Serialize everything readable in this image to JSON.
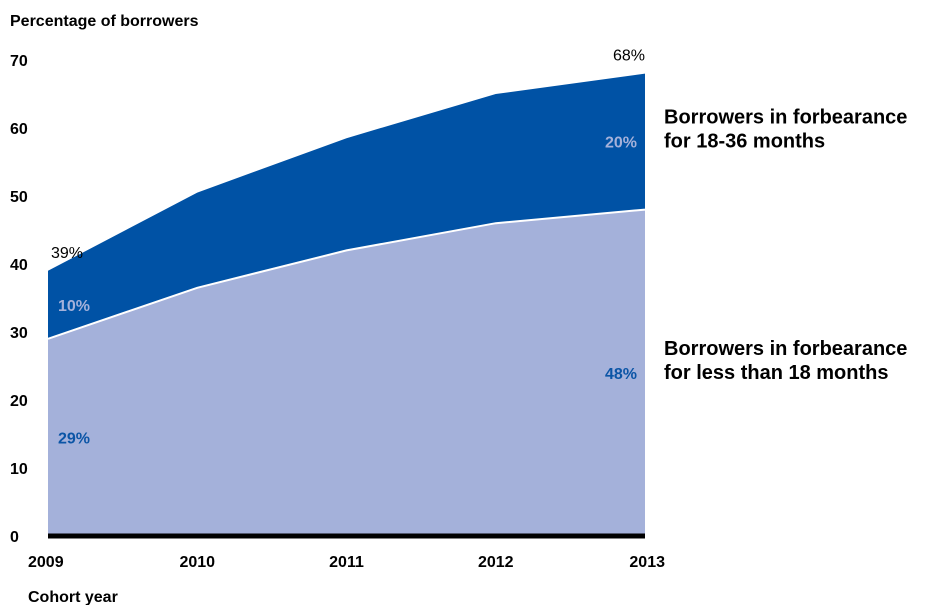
{
  "chart_data": {
    "type": "area",
    "stacked": true,
    "ylabel": "Percentage of borrowers",
    "xlabel": "Cohort year",
    "ylim": [
      0,
      70
    ],
    "yticks": [
      0,
      10,
      20,
      30,
      40,
      50,
      60,
      70
    ],
    "x": [
      "2009",
      "2010",
      "2011",
      "2012",
      "2013"
    ],
    "grid": false,
    "series": [
      {
        "name": "Borrowers in forbearance for less than 18 months",
        "name_lines": [
          "Borrowers in forbearance",
          "for less than 18 months"
        ],
        "color": "#a4b1da",
        "values": [
          29,
          36.5,
          42,
          46,
          48
        ],
        "labels": {
          "0": "29%",
          "4": "48%"
        },
        "label_color": "#0b55a6"
      },
      {
        "name": "Borrowers in forbearance for 18-36 months",
        "name_lines": [
          "Borrowers in forbearance",
          "for 18-36 months"
        ],
        "color": "#0052a5",
        "values": [
          10,
          14,
          16.5,
          19,
          20
        ],
        "labels": {
          "0": "10%",
          "4": "20%"
        },
        "label_color": "#a4b1da"
      }
    ],
    "totals": {
      "0": "39%",
      "4": "68%"
    },
    "baseline_color": "#000000",
    "boundary_color": "#ffffff"
  }
}
